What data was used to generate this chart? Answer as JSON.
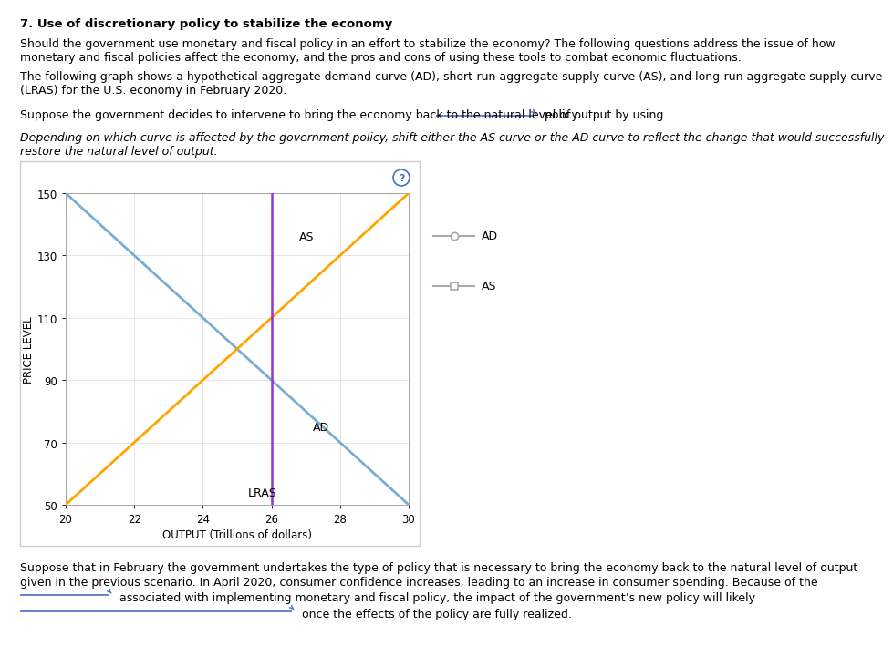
{
  "title": "7. Use of discretionary policy to stabilize the economy",
  "para1_l1": "Should the government use monetary and fiscal policy in an effort to stabilize the economy? The following questions address the issue of how",
  "para1_l2": "monetary and fiscal policies affect the economy, and the pros and cons of using these tools to combat economic fluctuations.",
  "para2_l1": "The following graph shows a hypothetical aggregate demand curve (AD), short-run aggregate supply curve (AS), and long-run aggregate supply curve",
  "para2_l2": "(LRAS) for the U.S. economy in February 2020.",
  "para3_pre": "Suppose the government decides to intervene to bring the economy back to the natural level of output by using",
  "para3_post": " policy.",
  "italic_l1": "Depending on which curve is affected by the government policy, shift either the AS curve or the AD curve to reflect the change that would successfully",
  "italic_l2": "restore the natural level of output.",
  "xlabel": "OUTPUT (Trillions of dollars)",
  "ylabel": "PRICE LEVEL",
  "xlim": [
    20,
    30
  ],
  "ylim": [
    50,
    150
  ],
  "xticks": [
    20,
    22,
    24,
    26,
    28,
    30
  ],
  "yticks": [
    50,
    70,
    90,
    110,
    130,
    150
  ],
  "lras_x": 26,
  "ad_x1": 20,
  "ad_y1": 150,
  "ad_x2": 30,
  "ad_y2": 50,
  "as_x1": 20,
  "as_y1": 50,
  "as_x2": 30,
  "as_y2": 150,
  "ad_color": "#7aadd4",
  "as_color": "#FFA500",
  "lras_color": "#9933CC",
  "ad_label": "AD",
  "as_label": "AS",
  "lras_label": "LRAS",
  "legend_line_color": "#AAAAAA",
  "bot_l1": "Suppose that in February the government undertakes the type of policy that is necessary to bring the economy back to the natural level of output",
  "bot_l2": "given in the previous scenario. In April 2020, consumer confidence increases, leading to an increase in consumer spending. Because of the",
  "bot_l3_post": " associated with implementing monetary and fiscal policy, the impact of the government’s new policy will likely",
  "bot_l4_post": " once the effects of the policy are fully realized.",
  "dropdown_color": "#4472C4",
  "bg_color": "#FFFFFF",
  "grid_color": "#E0E0E0",
  "qmark_color": "#4472C4",
  "panel_edge_color": "#CCCCCC",
  "text_fontsize": 9.0,
  "title_fontsize": 9.5,
  "italic_fontsize": 9.0,
  "tick_fontsize": 8.5,
  "axis_label_fontsize": 8.5,
  "curve_label_fontsize": 9.0,
  "legend_fontsize": 9.0
}
